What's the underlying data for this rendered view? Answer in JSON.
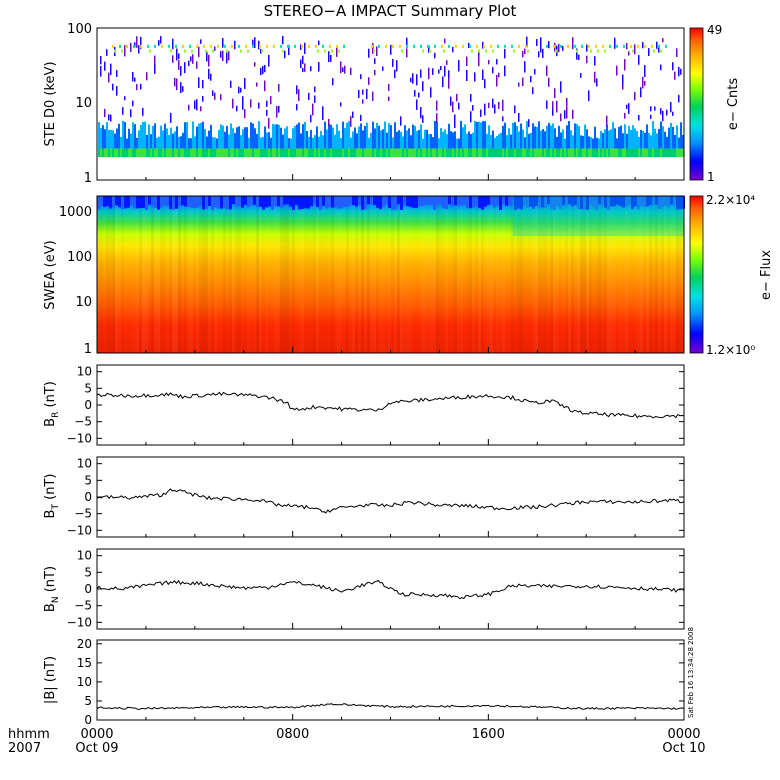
{
  "title": "STEREO−A IMPACT Summary Plot",
  "timestamp": "Sat Feb 16 13:34:28 2008",
  "colors": {
    "trace": "#000000",
    "spectrum": [
      "#7a00c8",
      "#0000ff",
      "#0096ff",
      "#00e0e0",
      "#00d060",
      "#80ff00",
      "#ffff00",
      "#ffb000",
      "#ff6000",
      "#ff0000"
    ]
  },
  "chart_data": [
    {
      "type": "heatmap",
      "ylabel": "STE D0 (keV)",
      "yscale": "log",
      "ylim": [
        1,
        100
      ],
      "yticks": [
        "1",
        "10",
        "100"
      ],
      "colorbar": {
        "label": "e− Cnts",
        "max": "49",
        "min": "1"
      }
    },
    {
      "type": "heatmap",
      "ylabel": "SWEA (eV)",
      "yscale": "log",
      "ylim": [
        1,
        2000
      ],
      "yticks": [
        "1",
        "10",
        "100",
        "1000"
      ],
      "colorbar": {
        "label": "e− Flux",
        "max": "2.2×10⁴",
        "min": "1.2×10⁰"
      }
    },
    {
      "type": "line",
      "ylabel": "B",
      "ylabel_sub": "R",
      "ylabel_unit": "(nT)",
      "ylim": [
        -12,
        12
      ],
      "yticks": [
        "10",
        "5",
        "0",
        "−5",
        "−10"
      ],
      "x": [
        0,
        1.5,
        3,
        3.5,
        5,
        6.5,
        7.2,
        7.8,
        8.0,
        9,
        10,
        11.5,
        12,
        13.5,
        15,
        16,
        17,
        17.8,
        18.6,
        19.6,
        21,
        22.5,
        24
      ],
      "y": [
        3,
        2.8,
        3.2,
        2.5,
        3.3,
        2.8,
        2,
        0.5,
        -1.5,
        -0.5,
        -1.2,
        -1.6,
        0.8,
        1.6,
        2.4,
        2.8,
        2.2,
        0.6,
        1.2,
        -2.2,
        -3.0,
        -3.4,
        -3.2
      ]
    },
    {
      "type": "line",
      "ylabel": "B",
      "ylabel_sub": "T",
      "ylabel_unit": "(nT)",
      "ylim": [
        -12,
        12
      ],
      "yticks": [
        "10",
        "5",
        "0",
        "−5",
        "−10"
      ],
      "x": [
        0,
        1.5,
        2.8,
        3,
        4.5,
        6.5,
        7.5,
        8.8,
        9.2,
        10,
        11,
        12,
        12.8,
        14,
        15,
        16.5,
        18,
        20,
        22,
        23.5,
        24
      ],
      "y": [
        0,
        -0.2,
        0.8,
        2.5,
        -0.3,
        -0.8,
        -2.5,
        -3.2,
        -4.5,
        -3.2,
        -2.4,
        -2.6,
        -1.5,
        -2.5,
        -2.6,
        -3.4,
        -3.0,
        -1.4,
        -1.5,
        -1.0,
        -1.4
      ]
    },
    {
      "type": "line",
      "ylabel": "B",
      "ylabel_sub": "N",
      "ylabel_unit": "(nT)",
      "ylim": [
        -12,
        12
      ],
      "yticks": [
        "10",
        "5",
        "0",
        "−5",
        "−10"
      ],
      "x": [
        0,
        1,
        2,
        3,
        4,
        5,
        6,
        7,
        7.5,
        8,
        9,
        10,
        11,
        11.5,
        12.5,
        14,
        15,
        16,
        17,
        18.5,
        20,
        22,
        24
      ],
      "y": [
        0.5,
        0,
        1,
        2,
        1.8,
        1,
        0.3,
        0.5,
        1.5,
        2,
        1,
        -0.8,
        1.5,
        2,
        -1.6,
        -1.8,
        -2.5,
        -1.6,
        1,
        0.8,
        0.9,
        0.3,
        -0.5
      ]
    },
    {
      "type": "line",
      "ylabel": "|B| (nT)",
      "ylim": [
        0,
        21
      ],
      "yticks": [
        "20",
        "15",
        "10",
        "5",
        "0"
      ],
      "x": [
        0,
        2,
        4,
        6,
        8,
        9.5,
        11,
        12,
        14,
        16,
        18,
        20,
        22,
        24
      ],
      "y": [
        3.2,
        3.0,
        3.2,
        3.4,
        3.3,
        4.2,
        3.8,
        3.5,
        3.6,
        3.8,
        3.4,
        3.0,
        3.1,
        3.0
      ]
    }
  ],
  "time_axis": {
    "row1": {
      "label": "hhmm",
      "ticks": [
        "0000",
        "0800",
        "1600",
        "0000"
      ]
    },
    "row2": {
      "label": "2007",
      "ticks": [
        "Oct 09",
        "",
        "",
        "Oct 10"
      ]
    }
  }
}
